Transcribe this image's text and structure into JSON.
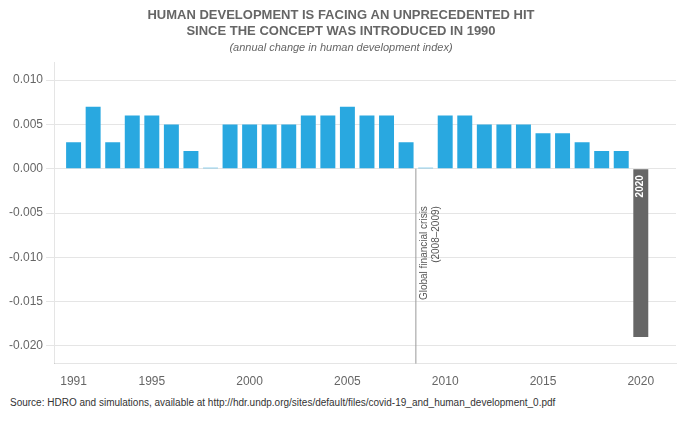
{
  "chart_data": {
    "type": "bar",
    "title": [
      "HUMAN DEVELOPMENT IS FACING AN UNPRECEDENTED HIT",
      "SINCE THE CONCEPT WAS INTRODUCED IN 1990"
    ],
    "subtitle": "(annual change in human development index)",
    "x": [
      1991,
      1992,
      1993,
      1994,
      1995,
      1996,
      1997,
      1998,
      1999,
      2000,
      2001,
      2002,
      2003,
      2004,
      2005,
      2006,
      2007,
      2008,
      2009,
      2010,
      2011,
      2012,
      2013,
      2014,
      2015,
      2016,
      2017,
      2018,
      2019,
      2020
    ],
    "values": [
      0.003,
      0.007,
      0.003,
      0.006,
      0.006,
      0.005,
      0.002,
      0.0001,
      0.005,
      0.005,
      0.005,
      0.005,
      0.006,
      0.006,
      0.007,
      0.006,
      0.006,
      0.003,
      0.0001,
      0.006,
      0.006,
      0.005,
      0.005,
      0.005,
      0.004,
      0.004,
      0.003,
      0.002,
      0.002,
      -0.019
    ],
    "colors": [
      "#29a8e0",
      "#29a8e0",
      "#29a8e0",
      "#29a8e0",
      "#29a8e0",
      "#29a8e0",
      "#29a8e0",
      "#29a8e0",
      "#29a8e0",
      "#29a8e0",
      "#29a8e0",
      "#29a8e0",
      "#29a8e0",
      "#29a8e0",
      "#29a8e0",
      "#29a8e0",
      "#29a8e0",
      "#29a8e0",
      "#29a8e0",
      "#29a8e0",
      "#29a8e0",
      "#29a8e0",
      "#29a8e0",
      "#29a8e0",
      "#29a8e0",
      "#29a8e0",
      "#29a8e0",
      "#29a8e0",
      "#29a8e0",
      "#666666"
    ],
    "xlim": [
      1990.0,
      2021.8
    ],
    "xticks": [
      1991,
      1995,
      2000,
      2005,
      2010,
      2015,
      2020
    ],
    "ylim": [
      -0.022,
      0.012
    ],
    "yticks": [
      {
        "value": -0.02,
        "label": "-0.020"
      },
      {
        "value": -0.015,
        "label": "-0.015"
      },
      {
        "value": -0.01,
        "label": "-0.010"
      },
      {
        "value": -0.005,
        "label": "-0.005"
      },
      {
        "value": 0.0,
        "label": "0.000"
      },
      {
        "value": 0.005,
        "label": "0.005"
      },
      {
        "value": 0.01,
        "label": "0.010"
      }
    ],
    "grid": true,
    "annotations": [
      {
        "text": "Global financial crisis\n(2008–2009)",
        "x": 2008.5,
        "y": -0.004,
        "line_style": "solid"
      },
      {
        "text": "2020",
        "x": 2020,
        "y": -0.0005,
        "color": "#ffffff"
      }
    ],
    "source": "Source: HDRO and simulations, available at http://hdr.undp.org/sites/default/files/covid-19_and_human_development_0.pdf"
  }
}
